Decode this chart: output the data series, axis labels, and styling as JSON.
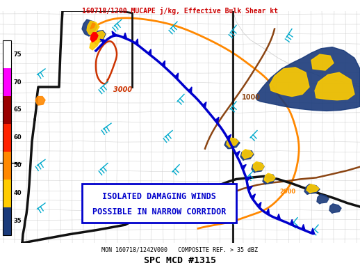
{
  "title": "SPC MCD #1315",
  "top_text": "160718/1200 MUCAPE j/kg, Effective Bulk Shear kt",
  "bottom_text": "MON 160718/1242V000   COMPOSITE REF. > 35 dBZ",
  "annotation_line1": "ISOLATED DAMAGING WINDS",
  "annotation_line2": "POSSIBLE IN NARROW CORRIDOR",
  "bg_color": "#ffffff",
  "map_bg": "#e8e8e8",
  "county_color": "#c8c8c8",
  "state_color": "#111111",
  "top_text_color": "#cc0000",
  "title_color": "#000000",
  "bottom_text_color": "#000000",
  "annotation_text_color": "#0000cc",
  "annotation_box_color": "#ffffff",
  "annotation_box_edge": "#0000cc",
  "orange_contour": "#ff8800",
  "red_contour": "#cc3300",
  "brown_contour": "#8B4513",
  "squall_color": "#0000cc",
  "radar_blue": "#1a3a7a",
  "radar_yellow": "#ffcc00",
  "radar_orange": "#ff8800",
  "radar_red": "#ff0000",
  "radar_darkred": "#990000",
  "wind_color": "#00aacc",
  "colorbar_colors": [
    "#1a3a7a",
    "#ffcc00",
    "#ff8800",
    "#ff0000",
    "#990000",
    "#ff00ff",
    "#ffffff"
  ],
  "colorbar_labels": [
    "35",
    "40",
    "50",
    "60",
    "65",
    "70",
    "75"
  ],
  "fig_width": 5.18,
  "fig_height": 3.88,
  "dpi": 100
}
